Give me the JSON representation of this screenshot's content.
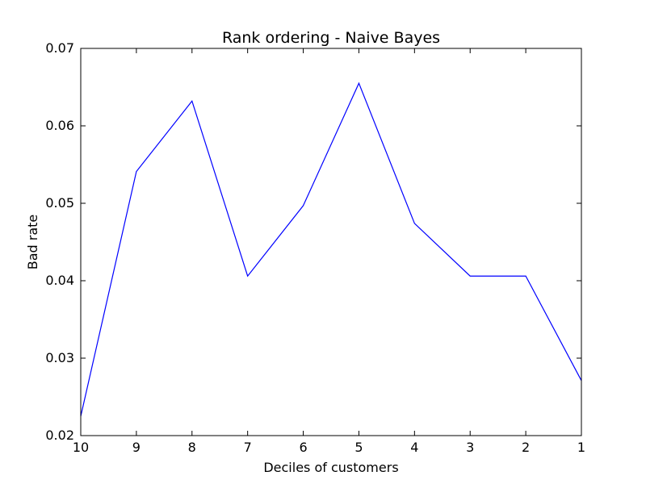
{
  "chart_data": {
    "type": "line",
    "title": "Rank ordering - Naive Bayes",
    "xlabel": "Deciles of customers",
    "ylabel": "Bad rate",
    "categories": [
      "10",
      "9",
      "8",
      "7",
      "6",
      "5",
      "4",
      "3",
      "2",
      "1"
    ],
    "series": [
      {
        "values": [
          0.0225,
          0.0541,
          0.0632,
          0.0406,
          0.0497,
          0.0655,
          0.0474,
          0.0406,
          0.0406,
          0.0271
        ],
        "color": "#0000ff"
      }
    ],
    "yticks": [
      "0.02",
      "0.03",
      "0.04",
      "0.05",
      "0.06",
      "0.07"
    ],
    "ylim": [
      0.02,
      0.07
    ],
    "grid": false,
    "legend": "none"
  }
}
